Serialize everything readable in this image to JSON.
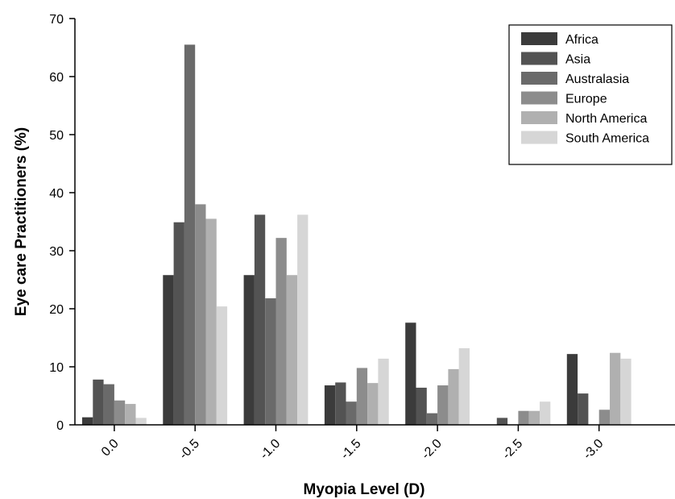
{
  "chart_data": {
    "type": "bar",
    "xlabel": "Myopia Level (D)",
    "ylabel": "Eye care Practitioners (%)",
    "ylim": [
      0,
      70
    ],
    "yticks": [
      "0",
      "10",
      "20",
      "30",
      "40",
      "50",
      "60",
      "70"
    ],
    "categories": [
      "0.0",
      "-0.5",
      "-1.0",
      "-1.5",
      "-2.0",
      "-2.5",
      "-3.0"
    ],
    "legend_position": "top-right",
    "series": [
      {
        "name": "Africa",
        "color": "#3b3b3b",
        "values": [
          1.3,
          25.8,
          25.8,
          6.8,
          17.6,
          0,
          12.2
        ]
      },
      {
        "name": "Asia",
        "color": "#535353",
        "values": [
          7.8,
          34.9,
          36.2,
          7.3,
          6.4,
          1.2,
          5.4
        ]
      },
      {
        "name": "Australasia",
        "color": "#6a6a6a",
        "values": [
          7.0,
          65.5,
          21.8,
          4.0,
          2.0,
          0,
          0
        ]
      },
      {
        "name": "Europe",
        "color": "#8c8c8c",
        "values": [
          4.2,
          38.0,
          32.2,
          9.8,
          6.8,
          2.4,
          2.6
        ]
      },
      {
        "name": "North America",
        "color": "#b0b0b0",
        "values": [
          3.6,
          35.5,
          25.8,
          7.2,
          9.6,
          2.4,
          12.4
        ]
      },
      {
        "name": "South America",
        "color": "#d6d6d6",
        "values": [
          1.2,
          20.4,
          36.2,
          11.4,
          13.2,
          4.0,
          11.4
        ]
      }
    ]
  }
}
